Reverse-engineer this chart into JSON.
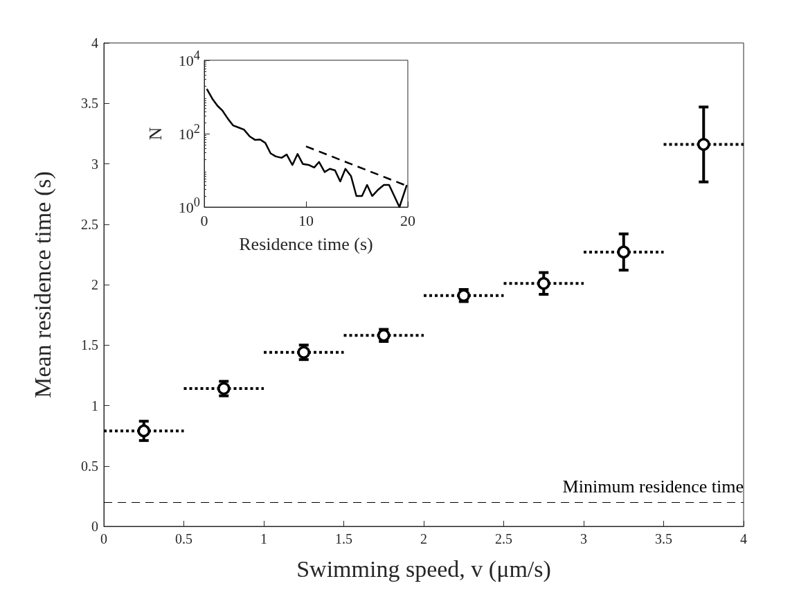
{
  "chart_data": [
    {
      "type": "scatter",
      "xlabel": "Swimming speed, v (μm/s)",
      "ylabel": "Mean residence time (s)",
      "x": [
        0.25,
        0.75,
        1.25,
        1.75,
        2.25,
        2.75,
        3.25,
        3.75
      ],
      "series": [
        {
          "color": "#000000",
          "values": [
            0.79,
            1.14,
            1.44,
            1.58,
            1.91,
            2.01,
            2.27,
            3.16
          ],
          "errors": [
            0.08,
            0.06,
            0.06,
            0.05,
            0.05,
            0.09,
            0.15,
            0.31
          ],
          "xerrors": [
            0.25,
            0.25,
            0.25,
            0.25,
            0.25,
            0.25,
            0.25,
            0.25
          ]
        }
      ],
      "marker": "circle",
      "xlim": [
        0,
        4
      ],
      "xticks": [
        0,
        0.5,
        1,
        1.5,
        2,
        2.5,
        3,
        3.5,
        4
      ],
      "ylim": [
        0,
        4
      ],
      "yticks": [
        0,
        0.5,
        1,
        1.5,
        2,
        2.5,
        3,
        3.5,
        4
      ],
      "ref_lines": [
        {
          "axis": "y",
          "value": 0.2,
          "label": "Minimum residence time",
          "line_style": "dashed",
          "color": "#000000"
        }
      ],
      "grid": false
    },
    {
      "type": "line",
      "xlabel": "Residence time (s)",
      "ylabel": "N",
      "log": "y",
      "marker": "none",
      "series": [
        {
          "color": "#000000",
          "line_style": "solid",
          "x": [
            0.25,
            0.8,
            1.3,
            1.8,
            2.33,
            2.84,
            3.35,
            3.9,
            4.47,
            4.98,
            5.5,
            6.0,
            6.52,
            7.03,
            7.6,
            8.1,
            8.66,
            9.17,
            9.68,
            10.3,
            10.8,
            11.28,
            11.83,
            12.34,
            12.85,
            13.36,
            13.87,
            14.42,
            14.95,
            15.5,
            16.0,
            16.5,
            17.1,
            17.65,
            18.16,
            19.18,
            19.9
          ],
          "values": [
            1660,
            890,
            575,
            420,
            253,
            167,
            148,
            129,
            84,
            68,
            69,
            56,
            29,
            24,
            22,
            27,
            14,
            28,
            15,
            14,
            12,
            17,
            9,
            11,
            10,
            5,
            11,
            7,
            2,
            2,
            4,
            2,
            3,
            4,
            4,
            1,
            4
          ]
        },
        {
          "color": "#000000",
          "line_style": "dashed",
          "x": [
            10,
            20
          ],
          "values": [
            45,
            3.7
          ]
        }
      ],
      "xlim": [
        0,
        20
      ],
      "xticks": [
        0,
        10,
        20
      ],
      "ylim": [
        1,
        10000
      ],
      "yticks": [
        {
          "value": 1,
          "label": "10$^{0}$"
        },
        {
          "value": 100,
          "label": "10$^{2}$"
        },
        {
          "value": 10000,
          "label": "10$^{4}$"
        }
      ],
      "grid": false
    }
  ]
}
